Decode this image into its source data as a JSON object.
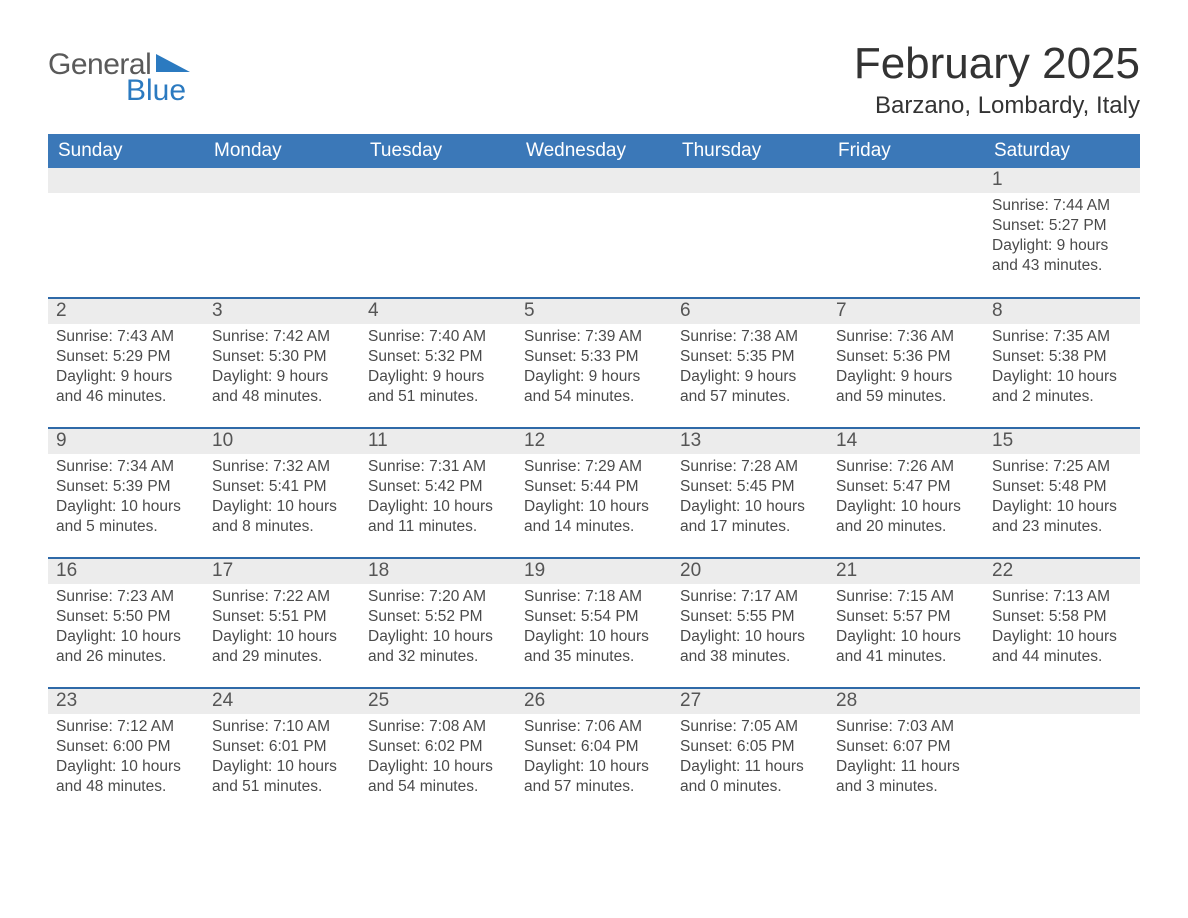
{
  "brand": {
    "line1": "General",
    "line2": "Blue"
  },
  "title": "February 2025",
  "location": "Barzano, Lombardy, Italy",
  "colors": {
    "header_blue": "#3b78b8",
    "accent_blue": "#2f76bd",
    "logo_blue": "#2b7ac0",
    "row_top_border": "#2f6aa8",
    "daynum_bg": "#ececec",
    "text": "#3a3a3a",
    "page_bg": "#ffffff"
  },
  "fontsize": {
    "title": 44,
    "subtitle": 24,
    "weekday_header": 19,
    "daynum": 19,
    "body": 15.5
  },
  "weekdays": [
    "Sunday",
    "Monday",
    "Tuesday",
    "Wednesday",
    "Thursday",
    "Friday",
    "Saturday"
  ],
  "labels": {
    "sunrise": "Sunrise:",
    "sunset": "Sunset:",
    "daylight": "Daylight:"
  },
  "weeks": [
    [
      null,
      null,
      null,
      null,
      null,
      null,
      {
        "n": "1",
        "sunrise": "7:44 AM",
        "sunset": "5:27 PM",
        "daylight": "9 hours and 43 minutes."
      }
    ],
    [
      {
        "n": "2",
        "sunrise": "7:43 AM",
        "sunset": "5:29 PM",
        "daylight": "9 hours and 46 minutes."
      },
      {
        "n": "3",
        "sunrise": "7:42 AM",
        "sunset": "5:30 PM",
        "daylight": "9 hours and 48 minutes."
      },
      {
        "n": "4",
        "sunrise": "7:40 AM",
        "sunset": "5:32 PM",
        "daylight": "9 hours and 51 minutes."
      },
      {
        "n": "5",
        "sunrise": "7:39 AM",
        "sunset": "5:33 PM",
        "daylight": "9 hours and 54 minutes."
      },
      {
        "n": "6",
        "sunrise": "7:38 AM",
        "sunset": "5:35 PM",
        "daylight": "9 hours and 57 minutes."
      },
      {
        "n": "7",
        "sunrise": "7:36 AM",
        "sunset": "5:36 PM",
        "daylight": "9 hours and 59 minutes."
      },
      {
        "n": "8",
        "sunrise": "7:35 AM",
        "sunset": "5:38 PM",
        "daylight": "10 hours and 2 minutes."
      }
    ],
    [
      {
        "n": "9",
        "sunrise": "7:34 AM",
        "sunset": "5:39 PM",
        "daylight": "10 hours and 5 minutes."
      },
      {
        "n": "10",
        "sunrise": "7:32 AM",
        "sunset": "5:41 PM",
        "daylight": "10 hours and 8 minutes."
      },
      {
        "n": "11",
        "sunrise": "7:31 AM",
        "sunset": "5:42 PM",
        "daylight": "10 hours and 11 minutes."
      },
      {
        "n": "12",
        "sunrise": "7:29 AM",
        "sunset": "5:44 PM",
        "daylight": "10 hours and 14 minutes."
      },
      {
        "n": "13",
        "sunrise": "7:28 AM",
        "sunset": "5:45 PM",
        "daylight": "10 hours and 17 minutes."
      },
      {
        "n": "14",
        "sunrise": "7:26 AM",
        "sunset": "5:47 PM",
        "daylight": "10 hours and 20 minutes."
      },
      {
        "n": "15",
        "sunrise": "7:25 AM",
        "sunset": "5:48 PM",
        "daylight": "10 hours and 23 minutes."
      }
    ],
    [
      {
        "n": "16",
        "sunrise": "7:23 AM",
        "sunset": "5:50 PM",
        "daylight": "10 hours and 26 minutes."
      },
      {
        "n": "17",
        "sunrise": "7:22 AM",
        "sunset": "5:51 PM",
        "daylight": "10 hours and 29 minutes."
      },
      {
        "n": "18",
        "sunrise": "7:20 AM",
        "sunset": "5:52 PM",
        "daylight": "10 hours and 32 minutes."
      },
      {
        "n": "19",
        "sunrise": "7:18 AM",
        "sunset": "5:54 PM",
        "daylight": "10 hours and 35 minutes."
      },
      {
        "n": "20",
        "sunrise": "7:17 AM",
        "sunset": "5:55 PM",
        "daylight": "10 hours and 38 minutes."
      },
      {
        "n": "21",
        "sunrise": "7:15 AM",
        "sunset": "5:57 PM",
        "daylight": "10 hours and 41 minutes."
      },
      {
        "n": "22",
        "sunrise": "7:13 AM",
        "sunset": "5:58 PM",
        "daylight": "10 hours and 44 minutes."
      }
    ],
    [
      {
        "n": "23",
        "sunrise": "7:12 AM",
        "sunset": "6:00 PM",
        "daylight": "10 hours and 48 minutes."
      },
      {
        "n": "24",
        "sunrise": "7:10 AM",
        "sunset": "6:01 PM",
        "daylight": "10 hours and 51 minutes."
      },
      {
        "n": "25",
        "sunrise": "7:08 AM",
        "sunset": "6:02 PM",
        "daylight": "10 hours and 54 minutes."
      },
      {
        "n": "26",
        "sunrise": "7:06 AM",
        "sunset": "6:04 PM",
        "daylight": "10 hours and 57 minutes."
      },
      {
        "n": "27",
        "sunrise": "7:05 AM",
        "sunset": "6:05 PM",
        "daylight": "11 hours and 0 minutes."
      },
      {
        "n": "28",
        "sunrise": "7:03 AM",
        "sunset": "6:07 PM",
        "daylight": "11 hours and 3 minutes."
      },
      null
    ]
  ]
}
